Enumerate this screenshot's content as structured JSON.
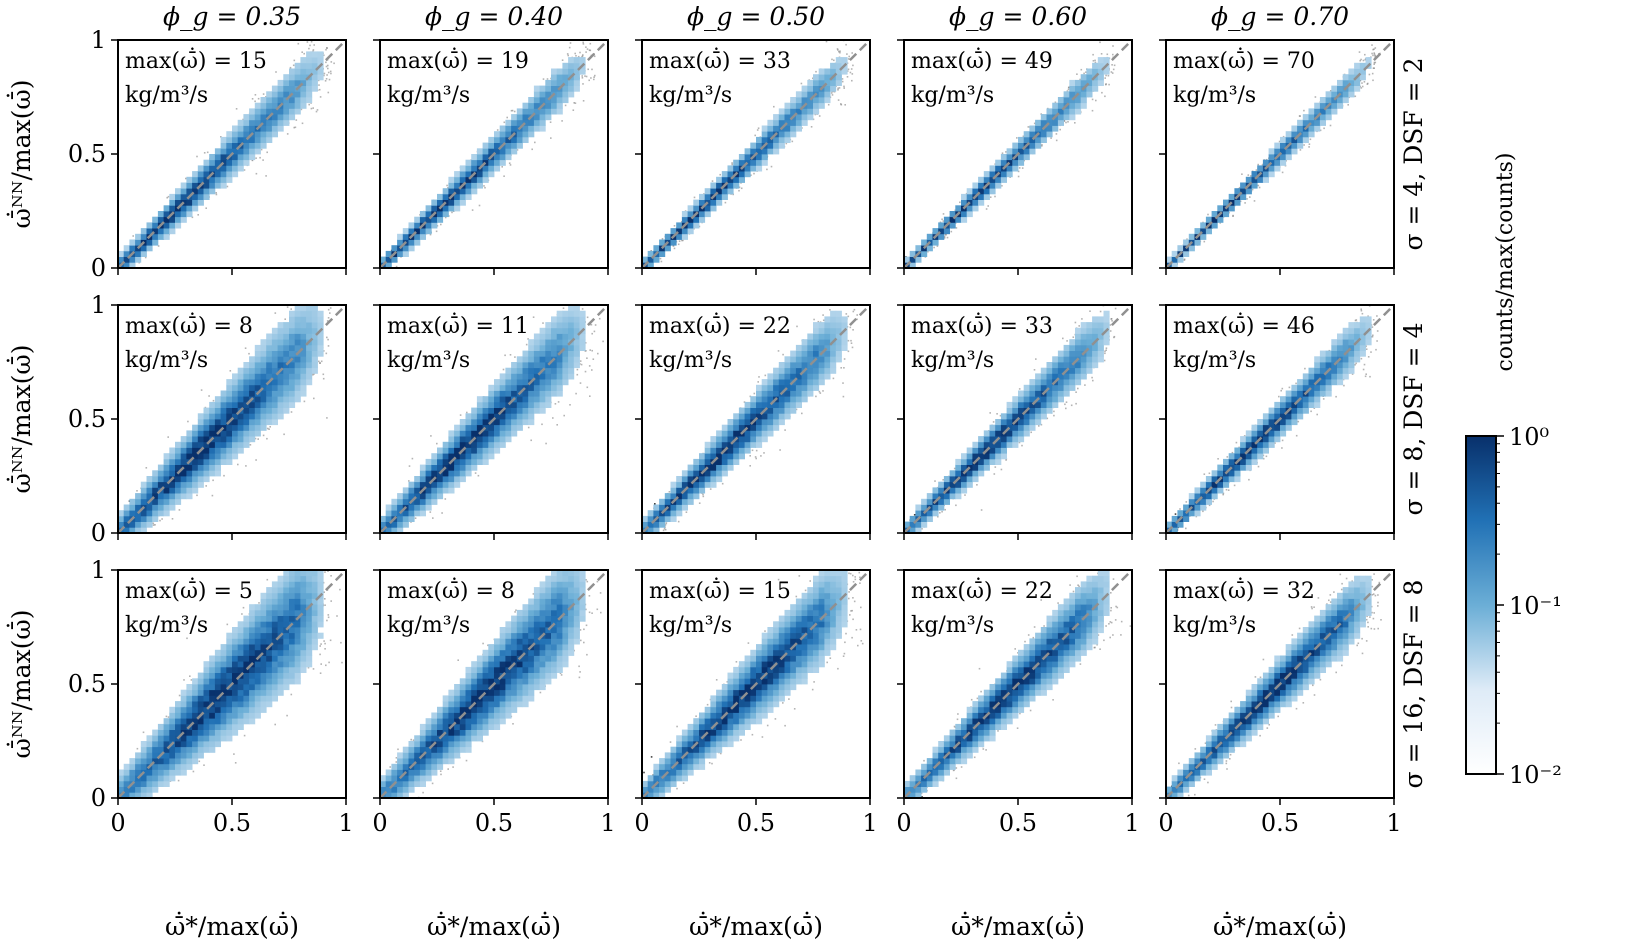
{
  "chart_data": {
    "type": "heatmap",
    "subtype": "density-scatter-grid",
    "columns": [
      "ϕ_g = 0.35",
      "ϕ_g = 0.40",
      "ϕ_g = 0.50",
      "ϕ_g = 0.60",
      "ϕ_g = 0.70"
    ],
    "rows": [
      "σ = 4, DSF = 2",
      "σ = 8, DSF = 4",
      "σ = 16, DSF = 8"
    ],
    "annotation_line2": "kg/m³/s",
    "annotations": [
      [
        "max(ω̄̇) = 15",
        "max(ω̄̇) = 19",
        "max(ω̄̇) = 33",
        "max(ω̄̇) = 49",
        "max(ω̄̇) = 70"
      ],
      [
        "max(ω̄̇) = 8",
        "max(ω̄̇) = 11",
        "max(ω̄̇) = 22",
        "max(ω̄̇) = 33",
        "max(ω̄̇) = 46"
      ],
      [
        "max(ω̄̇) = 5",
        "max(ω̄̇) = 8",
        "max(ω̄̇) = 15",
        "max(ω̄̇) = 22",
        "max(ω̄̇) = 32"
      ]
    ],
    "max_values": [
      [
        15,
        19,
        33,
        49,
        70
      ],
      [
        8,
        11,
        22,
        33,
        46
      ],
      [
        5,
        8,
        15,
        22,
        32
      ]
    ],
    "xlabel": "ω̄̇*/max(ω̄̇)",
    "ylabel": "ω̄̇ᴺᴺ/max(ω̄̇)",
    "xlim": [
      0,
      1
    ],
    "ylim": [
      0,
      1
    ],
    "x_ticks": [
      "0",
      "0.5",
      "1"
    ],
    "y_ticks": [
      "0",
      "0.5",
      "1"
    ],
    "reference_line": "y = x, dashed grey",
    "colorbar": {
      "label": "counts/max(counts)",
      "scale": "log",
      "range": [
        0.01,
        1
      ],
      "ticks": [
        "10⁰",
        "10⁻¹",
        "10⁻²"
      ]
    },
    "colors": {
      "dark": "#08306b",
      "mid": "#2171b5",
      "light": "#9ecae1",
      "white": "#ffffff",
      "diag": "#909090"
    },
    "spread": [
      [
        0.035,
        0.03,
        0.025,
        0.022,
        0.018
      ],
      [
        0.06,
        0.052,
        0.042,
        0.035,
        0.03
      ],
      [
        0.075,
        0.065,
        0.055,
        0.045,
        0.04
      ]
    ]
  }
}
